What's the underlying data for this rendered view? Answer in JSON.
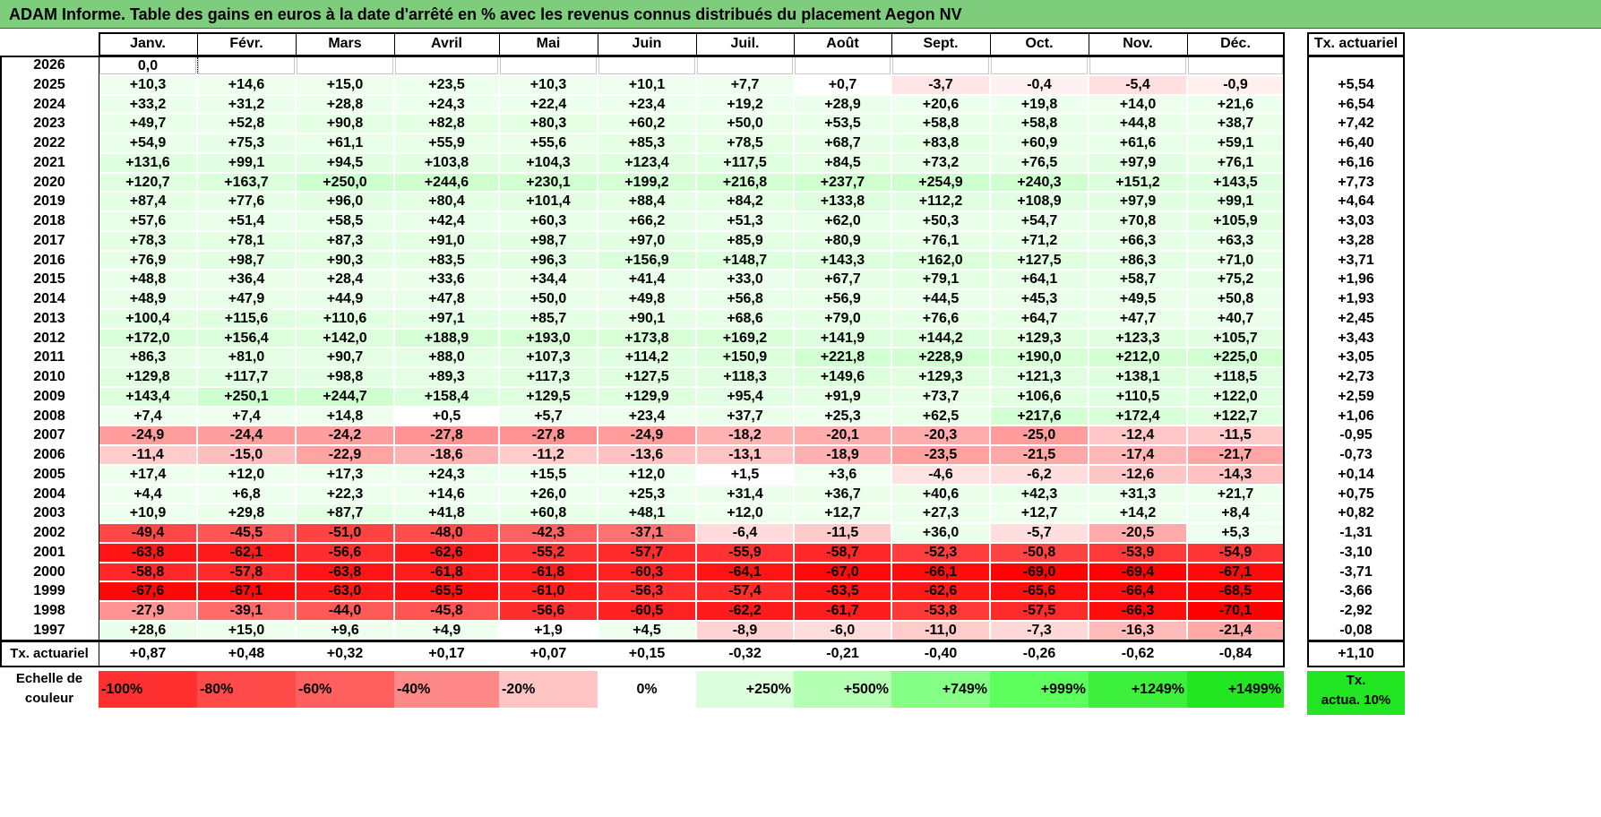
{
  "title": "ADAM Informe. Table des gains en euros à la date d'arrêté en % avec les revenus connus distribués du placement Aegon NV",
  "months": [
    "Janv.",
    "Févr.",
    "Mars",
    "Avril",
    "Mai",
    "Juin",
    "Juil.",
    "Août",
    "Sept.",
    "Oct.",
    "Nov.",
    "Déc."
  ],
  "rate_header": "Tx. actuariel",
  "rows": [
    {
      "year": "2026",
      "values": [
        "0,0",
        "",
        "",
        "",
        "",
        "",
        "",
        "",
        "",
        "",
        "",
        ""
      ],
      "rate": ""
    },
    {
      "year": "2025",
      "values": [
        "+10,3",
        "+14,6",
        "+15,0",
        "+23,5",
        "+10,3",
        "+10,1",
        "+7,7",
        "+0,7",
        "-3,7",
        "-0,4",
        "-5,4",
        "-0,9"
      ],
      "rate": "+5,54"
    },
    {
      "year": "2024",
      "values": [
        "+33,2",
        "+31,2",
        "+28,8",
        "+24,3",
        "+22,4",
        "+23,4",
        "+19,2",
        "+28,9",
        "+20,6",
        "+19,8",
        "+14,0",
        "+21,6"
      ],
      "rate": "+6,54"
    },
    {
      "year": "2023",
      "values": [
        "+49,7",
        "+52,8",
        "+90,8",
        "+82,8",
        "+80,3",
        "+60,2",
        "+50,0",
        "+53,5",
        "+58,8",
        "+58,8",
        "+44,8",
        "+38,7"
      ],
      "rate": "+7,42"
    },
    {
      "year": "2022",
      "values": [
        "+54,9",
        "+75,3",
        "+61,1",
        "+55,9",
        "+55,6",
        "+85,3",
        "+78,5",
        "+68,7",
        "+83,8",
        "+60,9",
        "+61,6",
        "+59,1"
      ],
      "rate": "+6,40"
    },
    {
      "year": "2021",
      "values": [
        "+131,6",
        "+99,1",
        "+94,5",
        "+103,8",
        "+104,3",
        "+123,4",
        "+117,5",
        "+84,5",
        "+73,2",
        "+76,5",
        "+97,9",
        "+76,1"
      ],
      "rate": "+6,16"
    },
    {
      "year": "2020",
      "values": [
        "+120,7",
        "+163,7",
        "+250,0",
        "+244,6",
        "+230,1",
        "+199,2",
        "+216,8",
        "+237,7",
        "+254,9",
        "+240,3",
        "+151,2",
        "+143,5"
      ],
      "rate": "+7,73"
    },
    {
      "year": "2019",
      "values": [
        "+87,4",
        "+77,6",
        "+96,0",
        "+80,4",
        "+101,4",
        "+88,4",
        "+84,2",
        "+133,8",
        "+112,2",
        "+108,9",
        "+97,9",
        "+99,1"
      ],
      "rate": "+4,64"
    },
    {
      "year": "2018",
      "values": [
        "+57,6",
        "+51,4",
        "+58,5",
        "+42,4",
        "+60,3",
        "+66,2",
        "+51,3",
        "+62,0",
        "+50,3",
        "+54,7",
        "+70,8",
        "+105,9"
      ],
      "rate": "+3,03"
    },
    {
      "year": "2017",
      "values": [
        "+78,3",
        "+78,1",
        "+87,3",
        "+91,0",
        "+98,7",
        "+97,0",
        "+85,9",
        "+80,9",
        "+76,1",
        "+71,2",
        "+66,3",
        "+63,3"
      ],
      "rate": "+3,28"
    },
    {
      "year": "2016",
      "values": [
        "+76,9",
        "+98,7",
        "+90,3",
        "+83,5",
        "+96,3",
        "+156,9",
        "+148,7",
        "+143,3",
        "+162,0",
        "+127,5",
        "+86,3",
        "+71,0"
      ],
      "rate": "+3,71"
    },
    {
      "year": "2015",
      "values": [
        "+48,8",
        "+36,4",
        "+28,4",
        "+33,6",
        "+34,4",
        "+41,4",
        "+33,0",
        "+67,7",
        "+79,1",
        "+64,1",
        "+58,7",
        "+75,2"
      ],
      "rate": "+1,96"
    },
    {
      "year": "2014",
      "values": [
        "+48,9",
        "+47,9",
        "+44,9",
        "+47,8",
        "+50,0",
        "+49,8",
        "+56,8",
        "+56,9",
        "+44,5",
        "+45,3",
        "+49,5",
        "+50,8"
      ],
      "rate": "+1,93"
    },
    {
      "year": "2013",
      "values": [
        "+100,4",
        "+115,6",
        "+110,6",
        "+97,1",
        "+85,7",
        "+90,1",
        "+68,6",
        "+79,0",
        "+76,6",
        "+64,7",
        "+47,7",
        "+40,7"
      ],
      "rate": "+2,45"
    },
    {
      "year": "2012",
      "values": [
        "+172,0",
        "+156,4",
        "+142,0",
        "+188,9",
        "+193,0",
        "+173,8",
        "+169,2",
        "+141,9",
        "+144,2",
        "+129,3",
        "+123,3",
        "+105,7"
      ],
      "rate": "+3,43"
    },
    {
      "year": "2011",
      "values": [
        "+86,3",
        "+81,0",
        "+90,7",
        "+88,0",
        "+107,3",
        "+114,2",
        "+150,9",
        "+221,8",
        "+228,9",
        "+190,0",
        "+212,0",
        "+225,0"
      ],
      "rate": "+3,05"
    },
    {
      "year": "2010",
      "values": [
        "+129,8",
        "+117,7",
        "+98,8",
        "+89,3",
        "+117,3",
        "+127,5",
        "+118,3",
        "+149,6",
        "+129,3",
        "+121,3",
        "+138,1",
        "+118,5"
      ],
      "rate": "+2,73"
    },
    {
      "year": "2009",
      "values": [
        "+143,4",
        "+250,1",
        "+244,7",
        "+158,4",
        "+129,5",
        "+129,9",
        "+95,4",
        "+91,9",
        "+73,7",
        "+106,6",
        "+110,5",
        "+122,0"
      ],
      "rate": "+2,59"
    },
    {
      "year": "2008",
      "values": [
        "+7,4",
        "+7,4",
        "+14,8",
        "+0,5",
        "+5,7",
        "+23,4",
        "+37,7",
        "+25,3",
        "+62,5",
        "+217,6",
        "+172,4",
        "+122,7"
      ],
      "rate": "+1,06"
    },
    {
      "year": "2007",
      "values": [
        "-24,9",
        "-24,4",
        "-24,2",
        "-27,8",
        "-27,8",
        "-24,9",
        "-18,2",
        "-20,1",
        "-20,3",
        "-25,0",
        "-12,4",
        "-11,5"
      ],
      "rate": "-0,95"
    },
    {
      "year": "2006",
      "values": [
        "-11,4",
        "-15,0",
        "-22,9",
        "-18,6",
        "-11,2",
        "-13,6",
        "-13,1",
        "-18,9",
        "-23,5",
        "-21,5",
        "-17,4",
        "-21,7"
      ],
      "rate": "-0,73"
    },
    {
      "year": "2005",
      "values": [
        "+17,4",
        "+12,0",
        "+17,3",
        "+24,3",
        "+15,5",
        "+12,0",
        "+1,5",
        "+3,6",
        "-4,6",
        "-6,2",
        "-12,6",
        "-14,3"
      ],
      "rate": "+0,14"
    },
    {
      "year": "2004",
      "values": [
        "+4,4",
        "+6,8",
        "+22,3",
        "+14,6",
        "+26,0",
        "+25,3",
        "+31,4",
        "+36,7",
        "+40,6",
        "+42,3",
        "+31,3",
        "+21,7"
      ],
      "rate": "+0,75"
    },
    {
      "year": "2003",
      "values": [
        "+10,9",
        "+29,8",
        "+87,7",
        "+41,8",
        "+60,8",
        "+48,1",
        "+12,0",
        "+12,7",
        "+27,3",
        "+12,7",
        "+14,2",
        "+8,4"
      ],
      "rate": "+0,82"
    },
    {
      "year": "2002",
      "values": [
        "-49,4",
        "-45,5",
        "-51,0",
        "-48,0",
        "-42,3",
        "-37,1",
        "-6,4",
        "-11,5",
        "+36,0",
        "-5,7",
        "-20,5",
        "+5,3"
      ],
      "rate": "-1,31"
    },
    {
      "year": "2001",
      "values": [
        "-63,8",
        "-62,1",
        "-56,6",
        "-62,6",
        "-55,2",
        "-57,7",
        "-55,9",
        "-58,7",
        "-52,3",
        "-50,8",
        "-53,9",
        "-54,9"
      ],
      "rate": "-3,10"
    },
    {
      "year": "2000",
      "values": [
        "-58,8",
        "-57,8",
        "-63,8",
        "-61,8",
        "-61,8",
        "-60,3",
        "-64,1",
        "-67,0",
        "-66,1",
        "-69,0",
        "-69,4",
        "-67,1"
      ],
      "rate": "-3,71"
    },
    {
      "year": "1999",
      "values": [
        "-67,6",
        "-67,1",
        "-63,0",
        "-65,5",
        "-61,0",
        "-56,3",
        "-57,4",
        "-63,5",
        "-62,6",
        "-65,6",
        "-66,4",
        "-68,5"
      ],
      "rate": "-3,66"
    },
    {
      "year": "1998",
      "values": [
        "-27,9",
        "-39,1",
        "-44,0",
        "-45,8",
        "-56,6",
        "-60,5",
        "-62,2",
        "-61,7",
        "-53,8",
        "-57,5",
        "-66,3",
        "-70,1"
      ],
      "rate": "-2,92"
    },
    {
      "year": "1997",
      "values": [
        "+28,6",
        "+15,0",
        "+9,6",
        "+4,9",
        "+1,9",
        "+4,5",
        "-8,9",
        "-6,0",
        "-11,0",
        "-7,3",
        "-16,3",
        "-21,4"
      ],
      "rate": "-0,08"
    }
  ],
  "footer": {
    "label": "Tx. actuariel",
    "values": [
      "+0,87",
      "+0,48",
      "+0,32",
      "+0,17",
      "+0,07",
      "+0,15",
      "-0,32",
      "-0,21",
      "-0,40",
      "-0,26",
      "-0,62",
      "-0,84"
    ],
    "rate": "+1,10"
  },
  "scale": {
    "label_line1": "Echelle de",
    "label_line2": "couleur",
    "items": [
      {
        "text": "-100%",
        "color": "#ff3030",
        "align": "left"
      },
      {
        "text": "-80%",
        "color": "#ff4a4a",
        "align": "left"
      },
      {
        "text": "-60%",
        "color": "#ff5f5f",
        "align": "left"
      },
      {
        "text": "-40%",
        "color": "#ff8888",
        "align": "left"
      },
      {
        "text": "-20%",
        "color": "#ffc4c4",
        "align": "left"
      },
      {
        "text": "0%",
        "color": "#ffffff",
        "align": "center"
      },
      {
        "text": "+250%",
        "color": "#dcffdc",
        "align": "right"
      },
      {
        "text": "+500%",
        "color": "#b4ffb4",
        "align": "right"
      },
      {
        "text": "+749%",
        "color": "#86ff86",
        "align": "right"
      },
      {
        "text": "+999%",
        "color": "#5cff5c",
        "align": "right"
      },
      {
        "text": "+1249%",
        "color": "#3cf03c",
        "align": "right"
      },
      {
        "text": "+1499%",
        "color": "#22e622",
        "align": "right"
      }
    ],
    "rate_line1": "Tx.",
    "rate_line2": "actua. 10%",
    "rate_color": "#22e622"
  },
  "colors": {
    "title_bg": "#7dcd7d"
  }
}
